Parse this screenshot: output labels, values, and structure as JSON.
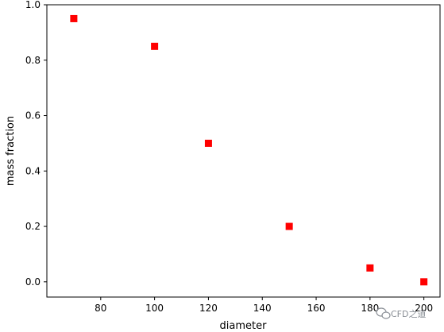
{
  "chart_data": {
    "type": "scatter",
    "xlabel": "diameter",
    "ylabel": "mass fraction",
    "xlim": [
      60,
      206
    ],
    "ylim": [
      -0.055,
      1.0
    ],
    "x_ticks": [
      80,
      100,
      120,
      140,
      160,
      180,
      200
    ],
    "y_ticks": [
      0.0,
      0.2,
      0.4,
      0.6,
      0.8,
      1.0
    ],
    "x_tick_labels": [
      "80",
      "100",
      "120",
      "140",
      "160",
      "180",
      "200"
    ],
    "y_tick_labels": [
      "0.0",
      "0.2",
      "0.4",
      "0.6",
      "0.8",
      "1.0"
    ],
    "grid": false,
    "marker": "square",
    "color": "#ff0000",
    "series": [
      {
        "x": [
          70,
          100,
          120,
          150,
          180,
          200
        ],
        "y": [
          0.95,
          0.85,
          0.5,
          0.2,
          0.05,
          0.0
        ]
      }
    ]
  },
  "watermark": {
    "text": "CFD之道",
    "icon": "wechat-icon",
    "color": "#8a8f96"
  }
}
